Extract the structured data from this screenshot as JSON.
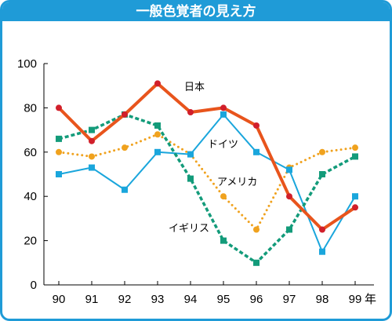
{
  "chart_data": {
    "type": "line",
    "title": "一般色覚者の見え方",
    "x": [
      "90",
      "91",
      "92",
      "93",
      "94",
      "95",
      "96",
      "97",
      "98",
      "99"
    ],
    "x_unit_label": "年",
    "ylim": [
      0,
      100
    ],
    "yticks": [
      0,
      20,
      40,
      60,
      80,
      100
    ],
    "grid": false,
    "series": [
      {
        "name": "日本",
        "style": "solid",
        "marker": "circle",
        "color": "#e8541c",
        "values": [
          80,
          65,
          77,
          91,
          78,
          80,
          72,
          40,
          25,
          35
        ]
      },
      {
        "name": "ドイツ",
        "style": "dotted",
        "marker": "circle",
        "color": "#f0a21e",
        "values": [
          60,
          58,
          62,
          68,
          59,
          40,
          25,
          53,
          60,
          62
        ]
      },
      {
        "name": "アメリカ",
        "style": "solid",
        "marker": "square",
        "color": "#1aa6dc",
        "values": [
          50,
          53,
          43,
          60,
          59,
          77,
          60,
          52,
          15,
          40
        ]
      },
      {
        "name": "イギリス",
        "style": "dashed",
        "marker": "square",
        "color": "#139b7a",
        "values": [
          66,
          70,
          77,
          72,
          48,
          20,
          10,
          25,
          50,
          58
        ]
      }
    ]
  }
}
